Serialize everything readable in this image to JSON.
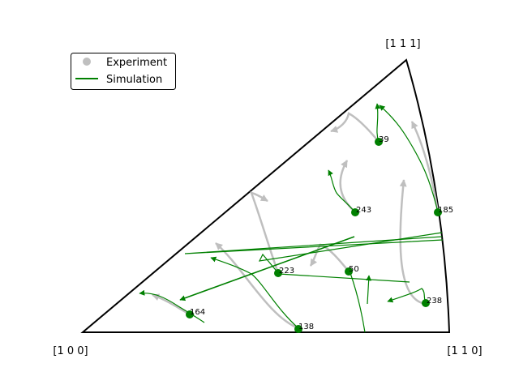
{
  "corners": {
    "bottom_left": "[1 0 0]",
    "bottom_right": "[1 1 0]",
    "top": "[1 1 1]"
  },
  "legend": {
    "experiment": "Experiment",
    "simulation": "Simulation"
  },
  "colors": {
    "experiment": "#bfbfbf",
    "simulation": "#008000",
    "outline": "#000000"
  },
  "grains": [
    {
      "id": "39",
      "label": "39"
    },
    {
      "id": "185",
      "label": "185"
    },
    {
      "id": "243",
      "label": "243"
    },
    {
      "id": "223",
      "label": "223"
    },
    {
      "id": "50",
      "label": "50"
    },
    {
      "id": "238",
      "label": "238"
    },
    {
      "id": "164",
      "label": "164"
    },
    {
      "id": "138",
      "label": "138"
    }
  ]
}
